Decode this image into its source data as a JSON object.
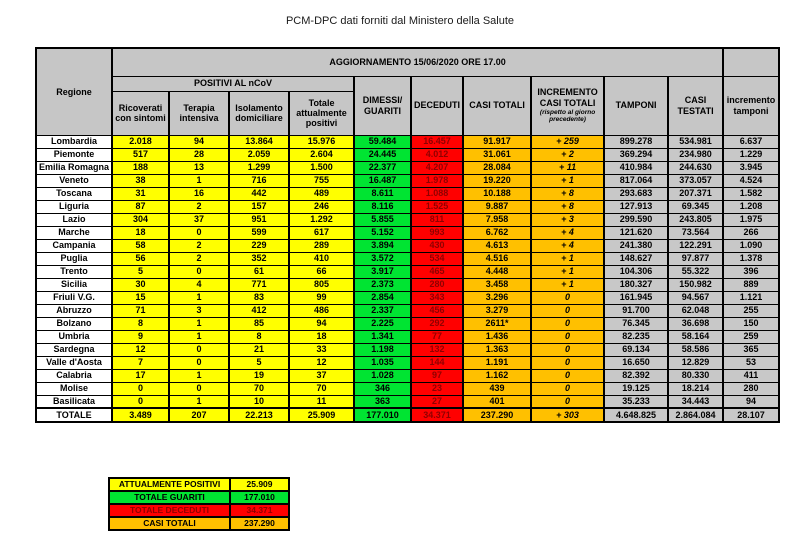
{
  "page_title": "PCM-DPC dati forniti dal Ministero della Salute",
  "colors": {
    "yellow": "#FFFF00",
    "green": "#00E432",
    "red": "#FF0000",
    "orange": "#FFC000",
    "header_gray": "#C6C6C6",
    "band_gray": "#D9D9D9",
    "data_gray": "#C8C8C8",
    "red_text": "#8F0000"
  },
  "table": {
    "update_header": "AGGIORNAMENTO 15/06/2020 ORE 17.00",
    "region_header": "Regione",
    "positivi_group_header": "POSITIVI AL nCoV",
    "columns": {
      "ricoverati": "Ricoverati con sintomi",
      "terapia": "Terapia intensiva",
      "isolamento": "Isolamento domiciliare",
      "totale_positivi": "Totale attualmente positivi",
      "dimessi": "DIMESSI/ GUARITI",
      "deceduti": "DECEDUTI",
      "casi_totali": "CASI TOTALI",
      "incremento_casi": "INCREMENTO CASI TOTALI",
      "incremento_casi_note": "(rispetto al giorno precedente)",
      "tamponi": "TAMPONI",
      "casi_testati": "CASI TESTATI",
      "incremento_tamponi": "incremento tamponi"
    },
    "rows": [
      {
        "regione": "Lombardia",
        "values": [
          "2.018",
          "94",
          "13.864",
          "15.976",
          "59.484",
          "16.457",
          "91.917",
          "+ 259",
          "899.278",
          "534.981",
          "6.637"
        ]
      },
      {
        "regione": "Piemonte",
        "values": [
          "517",
          "28",
          "2.059",
          "2.604",
          "24.445",
          "4.012",
          "31.061",
          "+ 2",
          "369.294",
          "234.980",
          "1.229"
        ]
      },
      {
        "regione": "Emilia Romagna",
        "values": [
          "188",
          "13",
          "1.299",
          "1.500",
          "22.377",
          "4.207",
          "28.084",
          "+ 11",
          "410.984",
          "244.630",
          "3.945"
        ]
      },
      {
        "regione": "Veneto",
        "values": [
          "38",
          "1",
          "716",
          "755",
          "16.487",
          "1.978",
          "19.220",
          "+ 1",
          "817.064",
          "373.057",
          "4.524"
        ]
      },
      {
        "regione": "Toscana",
        "values": [
          "31",
          "16",
          "442",
          "489",
          "8.611",
          "1.088",
          "10.188",
          "+ 8",
          "293.683",
          "207.371",
          "1.582"
        ]
      },
      {
        "regione": "Liguria",
        "values": [
          "87",
          "2",
          "157",
          "246",
          "8.116",
          "1.525",
          "9.887",
          "+ 8",
          "127.913",
          "69.345",
          "1.208"
        ]
      },
      {
        "regione": "Lazio",
        "values": [
          "304",
          "37",
          "951",
          "1.292",
          "5.855",
          "811",
          "7.958",
          "+ 3",
          "299.590",
          "243.805",
          "1.975"
        ]
      },
      {
        "regione": "Marche",
        "values": [
          "18",
          "0",
          "599",
          "617",
          "5.152",
          "993",
          "6.762",
          "+ 4",
          "121.620",
          "73.564",
          "266"
        ]
      },
      {
        "regione": "Campania",
        "values": [
          "58",
          "2",
          "229",
          "289",
          "3.894",
          "430",
          "4.613",
          "+ 4",
          "241.380",
          "122.291",
          "1.090"
        ]
      },
      {
        "regione": "Puglia",
        "values": [
          "56",
          "2",
          "352",
          "410",
          "3.572",
          "534",
          "4.516",
          "+ 1",
          "148.627",
          "97.877",
          "1.378"
        ]
      },
      {
        "regione": "Trento",
        "values": [
          "5",
          "0",
          "61",
          "66",
          "3.917",
          "465",
          "4.448",
          "+ 1",
          "104.306",
          "55.322",
          "396"
        ]
      },
      {
        "regione": "Sicilia",
        "values": [
          "30",
          "4",
          "771",
          "805",
          "2.373",
          "280",
          "3.458",
          "+ 1",
          "180.327",
          "150.982",
          "889"
        ]
      },
      {
        "regione": "Friuli V.G.",
        "values": [
          "15",
          "1",
          "83",
          "99",
          "2.854",
          "343",
          "3.296",
          "0",
          "161.945",
          "94.567",
          "1.121"
        ]
      },
      {
        "regione": "Abruzzo",
        "values": [
          "71",
          "3",
          "412",
          "486",
          "2.337",
          "456",
          "3.279",
          "0",
          "91.700",
          "62.048",
          "255"
        ]
      },
      {
        "regione": "Bolzano",
        "values": [
          "8",
          "1",
          "85",
          "94",
          "2.225",
          "292",
          "2611*",
          "0",
          "76.345",
          "36.698",
          "150"
        ]
      },
      {
        "regione": "Umbria",
        "values": [
          "9",
          "1",
          "8",
          "18",
          "1.341",
          "77",
          "1.436",
          "0",
          "82.235",
          "58.164",
          "259"
        ]
      },
      {
        "regione": "Sardegna",
        "values": [
          "12",
          "0",
          "21",
          "33",
          "1.198",
          "132",
          "1.363",
          "0",
          "69.134",
          "58.586",
          "365"
        ]
      },
      {
        "regione": "Valle d'Aosta",
        "values": [
          "7",
          "0",
          "5",
          "12",
          "1.035",
          "144",
          "1.191",
          "0",
          "16.650",
          "12.829",
          "53"
        ]
      },
      {
        "regione": "Calabria",
        "values": [
          "17",
          "1",
          "19",
          "37",
          "1.028",
          "97",
          "1.162",
          "0",
          "82.392",
          "80.330",
          "411"
        ]
      },
      {
        "regione": "Molise",
        "values": [
          "0",
          "0",
          "70",
          "70",
          "346",
          "23",
          "439",
          "0",
          "19.125",
          "18.214",
          "280"
        ]
      },
      {
        "regione": "Basilicata",
        "values": [
          "0",
          "1",
          "10",
          "11",
          "363",
          "27",
          "401",
          "0",
          "35.233",
          "34.443",
          "94"
        ]
      }
    ],
    "totale": {
      "regione": "TOTALE",
      "values": [
        "3.489",
        "207",
        "22.213",
        "25.909",
        "177.010",
        "34.371",
        "237.290",
        "+ 303",
        "4.648.825",
        "2.864.084",
        "28.107"
      ]
    }
  },
  "summary": [
    {
      "label": "ATTUALMENTE POSITIVI",
      "value": "25.909",
      "color": "yellow"
    },
    {
      "label": "TOTALE GUARITI",
      "value": "177.010",
      "color": "green"
    },
    {
      "label": "TOTALE DECEDUTI",
      "value": "34.371",
      "color": "red"
    },
    {
      "label": "CASI TOTALI",
      "value": "237.290",
      "color": "orange"
    }
  ]
}
